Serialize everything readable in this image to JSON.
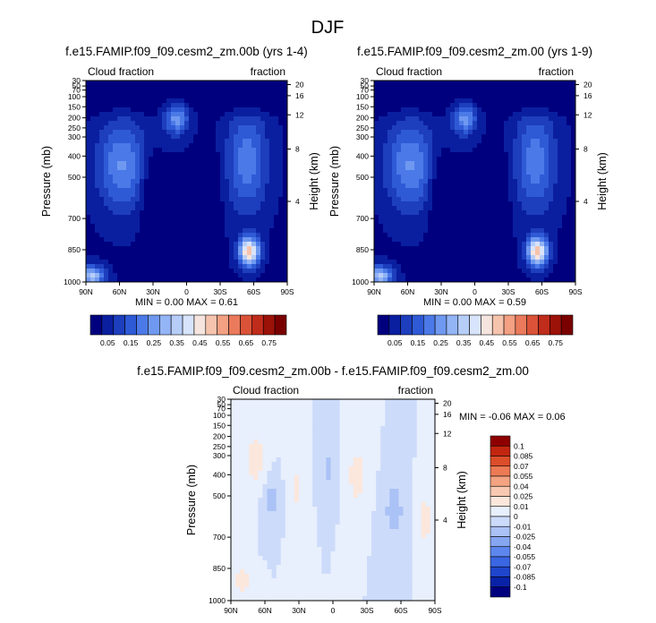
{
  "figure_title": "DJF",
  "colors": {
    "seq_scale": [
      "#00007f",
      "#0a1fa0",
      "#1d3ebd",
      "#2f5ad6",
      "#4b7ae8",
      "#6f99f0",
      "#93b4f5",
      "#b6cdf8",
      "#d8e4fb",
      "#f6e4de",
      "#f6c3ad",
      "#f3a083",
      "#ea7a5b",
      "#da5237",
      "#c02c1b",
      "#9c1208",
      "#7a0000"
    ],
    "diff_scale": [
      "#00007f",
      "#0a22a8",
      "#1f45cc",
      "#3a66e3",
      "#5d87ee",
      "#86a6f2",
      "#aac2f6",
      "#cddbfa",
      "#e8effd",
      "#fbe7dc",
      "#f8c8b0",
      "#f3a381",
      "#ec7a54",
      "#dc4d2a",
      "#c22610",
      "#8e0000"
    ]
  },
  "chart_data": [
    {
      "type": "heatmap",
      "title": "f.e15.FAMIP.f09_f09.cesm2_zm.00b (yrs 1-4)",
      "left_label": "Cloud fraction",
      "right_label": "fraction",
      "ylabel": "Pressure (mb)",
      "ylabel_right": "Height (km)",
      "x_ticks": [
        "90N",
        "60N",
        "30N",
        "0",
        "30S",
        "60S",
        "90S"
      ],
      "y_ticks": [
        "30",
        "50",
        "70",
        "100",
        "150",
        "200",
        "250",
        "300",
        "400",
        "500",
        "700",
        "850",
        "1000"
      ],
      "y_ticks_right": [
        "20",
        "16",
        "12",
        "8",
        "4"
      ],
      "min_label": "MIN =",
      "min_value": "0.00",
      "max_label": "MAX =",
      "max_value": "0.61",
      "colorbar_labels": [
        "0.05",
        "0.15",
        "0.25",
        "0.35",
        "0.45",
        "0.55",
        "0.65",
        "0.75"
      ]
    },
    {
      "type": "heatmap",
      "title": "f.e15.FAMIP.f09_f09.cesm2_zm.00 (yrs 1-9)",
      "left_label": "Cloud fraction",
      "right_label": "fraction",
      "ylabel": "Pressure (mb)",
      "ylabel_right": "Height (km)",
      "x_ticks": [
        "90N",
        "60N",
        "30N",
        "0",
        "30S",
        "60S",
        "90S"
      ],
      "y_ticks": [
        "30",
        "50",
        "70",
        "100",
        "150",
        "200",
        "250",
        "300",
        "400",
        "500",
        "700",
        "850",
        "1000"
      ],
      "y_ticks_right": [
        "20",
        "16",
        "12",
        "8",
        "4"
      ],
      "min_label": "MIN =",
      "min_value": "0.00",
      "max_label": "MAX =",
      "max_value": "0.59",
      "colorbar_labels": [
        "0.05",
        "0.15",
        "0.25",
        "0.35",
        "0.45",
        "0.55",
        "0.65",
        "0.75"
      ]
    },
    {
      "type": "heatmap",
      "title": "f.e15.FAMIP.f09_f09.cesm2_zm.00b - f.e15.FAMIP.f09_f09.cesm2_zm.00",
      "left_label": "Cloud fraction",
      "right_label": "fraction",
      "ylabel": "Pressure (mb)",
      "ylabel_right": "Height (km)",
      "x_ticks": [
        "90N",
        "60N",
        "30N",
        "0",
        "30S",
        "60S",
        "90S"
      ],
      "y_ticks": [
        "30",
        "50",
        "70",
        "100",
        "150",
        "200",
        "250",
        "300",
        "400",
        "500",
        "700",
        "850",
        "1000"
      ],
      "y_ticks_right": [
        "20",
        "16",
        "12",
        "8",
        "4"
      ],
      "min_label": "MIN =",
      "min_value": "-0.06",
      "max_label": "MAX =",
      "max_value": "0.06",
      "colorbar_labels": [
        "0.1",
        "0.085",
        "0.07",
        "0.055",
        "0.04",
        "0.025",
        "0.01",
        "0",
        "-0.01",
        "-0.025",
        "-0.04",
        "-0.055",
        "-0.07",
        "-0.085",
        "-0.1"
      ]
    }
  ]
}
